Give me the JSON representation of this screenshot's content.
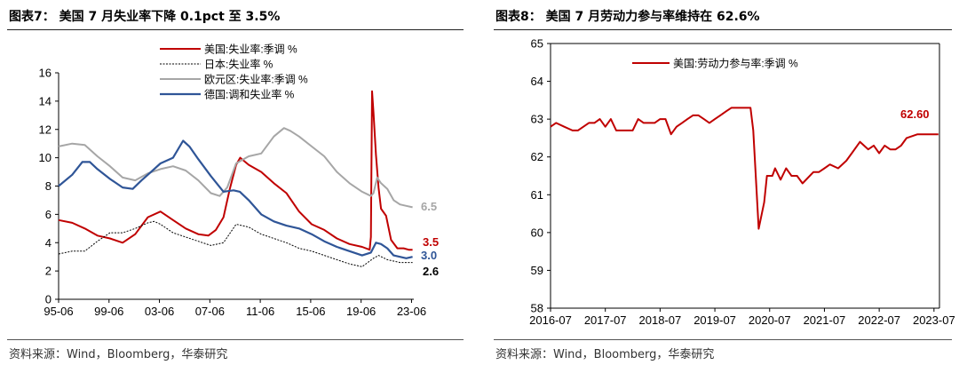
{
  "left": {
    "title": "图表7：   美国 7 月失业率下降 0.1pct 至 3.5%",
    "source": "资料来源：Wind，Bloomberg，华泰研究",
    "chart_data": {
      "type": "line",
      "title": "美国 7 月失业率下降 0.1pct 至 3.5%",
      "ylim": [
        0,
        16
      ],
      "yticks": [
        "0",
        "2",
        "4",
        "6",
        "8",
        "10",
        "12",
        "14",
        "16"
      ],
      "xlim": [
        1995.42,
        2023.6
      ],
      "xticks": [
        {
          "x": 1995.42,
          "label": "95-06"
        },
        {
          "x": 1999.42,
          "label": "99-06"
        },
        {
          "x": 2003.42,
          "label": "03-06"
        },
        {
          "x": 2007.42,
          "label": "07-06"
        },
        {
          "x": 2011.42,
          "label": "11-06"
        },
        {
          "x": 2015.42,
          "label": "15-06"
        },
        {
          "x": 2019.42,
          "label": "19-06"
        },
        {
          "x": 2023.42,
          "label": "23-06"
        }
      ],
      "series": [
        {
          "name": "美国:失业率:季调  %",
          "color": "#c00000",
          "style": "solid",
          "width": 2,
          "end_label": "3.5",
          "points": [
            [
              1995.42,
              5.6
            ],
            [
              1996.5,
              5.4
            ],
            [
              1997.5,
              5.0
            ],
            [
              1998.5,
              4.5
            ],
            [
              1999.5,
              4.3
            ],
            [
              2000.5,
              4.0
            ],
            [
              2001.5,
              4.6
            ],
            [
              2002.5,
              5.8
            ],
            [
              2003.5,
              6.2
            ],
            [
              2004.5,
              5.6
            ],
            [
              2005.5,
              5.0
            ],
            [
              2006.5,
              4.6
            ],
            [
              2007.3,
              4.5
            ],
            [
              2007.9,
              4.9
            ],
            [
              2008.5,
              5.8
            ],
            [
              2009.0,
              7.8
            ],
            [
              2009.5,
              9.5
            ],
            [
              2009.83,
              10.0
            ],
            [
              2010.5,
              9.5
            ],
            [
              2011.5,
              9.0
            ],
            [
              2012.5,
              8.2
            ],
            [
              2013.5,
              7.5
            ],
            [
              2014.5,
              6.2
            ],
            [
              2015.5,
              5.3
            ],
            [
              2016.5,
              4.9
            ],
            [
              2017.5,
              4.3
            ],
            [
              2018.5,
              3.9
            ],
            [
              2019.5,
              3.7
            ],
            [
              2020.1,
              3.5
            ],
            [
              2020.2,
              4.4
            ],
            [
              2020.29,
              14.7
            ],
            [
              2020.4,
              13.2
            ],
            [
              2020.6,
              10.2
            ],
            [
              2020.8,
              7.9
            ],
            [
              2021.0,
              6.4
            ],
            [
              2021.4,
              5.9
            ],
            [
              2021.8,
              4.2
            ],
            [
              2022.3,
              3.6
            ],
            [
              2022.8,
              3.6
            ],
            [
              2023.2,
              3.5
            ],
            [
              2023.5,
              3.5
            ]
          ]
        },
        {
          "name": "日本:失业率  %",
          "color": "#000000",
          "style": "dotted",
          "width": 1,
          "end_label": "2.6",
          "points": [
            [
              1995.42,
              3.2
            ],
            [
              1996.5,
              3.4
            ],
            [
              1997.5,
              3.4
            ],
            [
              1998.5,
              4.1
            ],
            [
              1999.5,
              4.7
            ],
            [
              2000.5,
              4.7
            ],
            [
              2001.5,
              5.0
            ],
            [
              2002.5,
              5.4
            ],
            [
              2003.0,
              5.5
            ],
            [
              2003.5,
              5.3
            ],
            [
              2004.5,
              4.7
            ],
            [
              2005.5,
              4.4
            ],
            [
              2006.5,
              4.1
            ],
            [
              2007.5,
              3.8
            ],
            [
              2008.5,
              4.0
            ],
            [
              2009.5,
              5.3
            ],
            [
              2010.5,
              5.1
            ],
            [
              2011.5,
              4.6
            ],
            [
              2012.5,
              4.3
            ],
            [
              2013.5,
              4.0
            ],
            [
              2014.5,
              3.6
            ],
            [
              2015.5,
              3.4
            ],
            [
              2016.5,
              3.1
            ],
            [
              2017.5,
              2.8
            ],
            [
              2018.5,
              2.5
            ],
            [
              2019.5,
              2.3
            ],
            [
              2020.4,
              2.9
            ],
            [
              2020.8,
              3.1
            ],
            [
              2021.5,
              2.8
            ],
            [
              2022.5,
              2.6
            ],
            [
              2023.5,
              2.6
            ]
          ]
        },
        {
          "name": "欧元区:失业率:季调  %",
          "color": "#a6a6a6",
          "style": "solid",
          "width": 2,
          "end_label": "6.5",
          "points": [
            [
              1995.42,
              10.8
            ],
            [
              1996.5,
              11.0
            ],
            [
              1997.5,
              10.9
            ],
            [
              1998.5,
              10.1
            ],
            [
              1999.5,
              9.4
            ],
            [
              2000.5,
              8.6
            ],
            [
              2001.5,
              8.4
            ],
            [
              2002.5,
              8.9
            ],
            [
              2003.5,
              9.2
            ],
            [
              2004.5,
              9.4
            ],
            [
              2005.5,
              9.1
            ],
            [
              2006.5,
              8.4
            ],
            [
              2007.5,
              7.5
            ],
            [
              2008.2,
              7.3
            ],
            [
              2008.8,
              7.9
            ],
            [
              2009.5,
              9.6
            ],
            [
              2010.5,
              10.1
            ],
            [
              2011.5,
              10.3
            ],
            [
              2012.5,
              11.5
            ],
            [
              2013.3,
              12.1
            ],
            [
              2013.8,
              11.9
            ],
            [
              2014.5,
              11.5
            ],
            [
              2015.5,
              10.8
            ],
            [
              2016.5,
              10.1
            ],
            [
              2017.5,
              9.0
            ],
            [
              2018.5,
              8.2
            ],
            [
              2019.5,
              7.6
            ],
            [
              2020.2,
              7.3
            ],
            [
              2020.4,
              7.5
            ],
            [
              2020.7,
              8.6
            ],
            [
              2021.0,
              8.2
            ],
            [
              2021.5,
              7.8
            ],
            [
              2022.0,
              7.0
            ],
            [
              2022.5,
              6.7
            ],
            [
              2023.0,
              6.6
            ],
            [
              2023.5,
              6.5
            ]
          ]
        },
        {
          "name": "德国:调和失业率  %",
          "color": "#2f5597",
          "style": "solid",
          "width": 2.2,
          "end_label": "3.0",
          "points": [
            [
              1995.42,
              8.0
            ],
            [
              1996.5,
              8.8
            ],
            [
              1997.3,
              9.7
            ],
            [
              1997.9,
              9.7
            ],
            [
              1998.5,
              9.2
            ],
            [
              1999.5,
              8.5
            ],
            [
              2000.5,
              7.9
            ],
            [
              2001.3,
              7.8
            ],
            [
              2002.0,
              8.4
            ],
            [
              2002.5,
              8.8
            ],
            [
              2003.5,
              9.6
            ],
            [
              2004.5,
              10.0
            ],
            [
              2005.3,
              11.2
            ],
            [
              2005.8,
              10.8
            ],
            [
              2006.5,
              9.9
            ],
            [
              2007.5,
              8.7
            ],
            [
              2008.5,
              7.6
            ],
            [
              2009.3,
              7.7
            ],
            [
              2009.8,
              7.6
            ],
            [
              2010.5,
              7.0
            ],
            [
              2011.5,
              6.0
            ],
            [
              2012.5,
              5.5
            ],
            [
              2013.5,
              5.2
            ],
            [
              2014.5,
              5.0
            ],
            [
              2015.5,
              4.6
            ],
            [
              2016.5,
              4.1
            ],
            [
              2017.5,
              3.7
            ],
            [
              2018.5,
              3.4
            ],
            [
              2019.5,
              3.1
            ],
            [
              2020.2,
              3.3
            ],
            [
              2020.6,
              4.0
            ],
            [
              2021.0,
              3.9
            ],
            [
              2021.5,
              3.6
            ],
            [
              2022.0,
              3.1
            ],
            [
              2022.5,
              3.0
            ],
            [
              2023.0,
              2.9
            ],
            [
              2023.5,
              3.0
            ]
          ]
        }
      ]
    }
  },
  "right": {
    "title": "图表8：   美国 7 月劳动力参与率维持在 62.6%",
    "source": "资料来源：Wind，Bloomberg，华泰研究",
    "chart_data": {
      "type": "line",
      "title": "美国 7 月劳动力参与率维持在 62.6%",
      "ylim": [
        58,
        65
      ],
      "yticks": [
        "58",
        "59",
        "60",
        "61",
        "62",
        "63",
        "64",
        "65"
      ],
      "xlim": [
        2016.5,
        2023.6
      ],
      "xticks": [
        {
          "x": 2016.5,
          "label": "2016-07"
        },
        {
          "x": 2017.5,
          "label": "2017-07"
        },
        {
          "x": 2018.5,
          "label": "2018-07"
        },
        {
          "x": 2019.5,
          "label": "2019-07"
        },
        {
          "x": 2020.5,
          "label": "2020-07"
        },
        {
          "x": 2021.5,
          "label": "2021-07"
        },
        {
          "x": 2022.5,
          "label": "2022-07"
        },
        {
          "x": 2023.5,
          "label": "2023-07"
        }
      ],
      "series": [
        {
          "name": "美国:劳动力参与率:季调  %",
          "color": "#c00000",
          "style": "solid",
          "width": 2,
          "end_label": "62.60",
          "points": [
            [
              2016.5,
              62.8
            ],
            [
              2016.6,
              62.9
            ],
            [
              2016.75,
              62.8
            ],
            [
              2016.9,
              62.7
            ],
            [
              2017.0,
              62.7
            ],
            [
              2017.1,
              62.8
            ],
            [
              2017.2,
              62.9
            ],
            [
              2017.3,
              62.9
            ],
            [
              2017.4,
              63.0
            ],
            [
              2017.5,
              62.8
            ],
            [
              2017.6,
              63.0
            ],
            [
              2017.7,
              62.7
            ],
            [
              2017.8,
              62.7
            ],
            [
              2017.9,
              62.7
            ],
            [
              2018.0,
              62.7
            ],
            [
              2018.1,
              63.0
            ],
            [
              2018.2,
              62.9
            ],
            [
              2018.4,
              62.9
            ],
            [
              2018.5,
              63.0
            ],
            [
              2018.6,
              63.0
            ],
            [
              2018.7,
              62.6
            ],
            [
              2018.8,
              62.8
            ],
            [
              2018.9,
              62.9
            ],
            [
              2019.0,
              63.0
            ],
            [
              2019.1,
              63.1
            ],
            [
              2019.2,
              63.1
            ],
            [
              2019.3,
              63.0
            ],
            [
              2019.4,
              62.9
            ],
            [
              2019.5,
              63.0
            ],
            [
              2019.6,
              63.1
            ],
            [
              2019.7,
              63.2
            ],
            [
              2019.8,
              63.3
            ],
            [
              2020.0,
              63.3
            ],
            [
              2020.15,
              63.3
            ],
            [
              2020.2,
              62.7
            ],
            [
              2020.3,
              60.1
            ],
            [
              2020.4,
              60.8
            ],
            [
              2020.45,
              61.5
            ],
            [
              2020.55,
              61.5
            ],
            [
              2020.6,
              61.7
            ],
            [
              2020.7,
              61.4
            ],
            [
              2020.8,
              61.7
            ],
            [
              2020.9,
              61.5
            ],
            [
              2021.0,
              61.5
            ],
            [
              2021.1,
              61.3
            ],
            [
              2021.3,
              61.6
            ],
            [
              2021.4,
              61.6
            ],
            [
              2021.5,
              61.7
            ],
            [
              2021.6,
              61.8
            ],
            [
              2021.75,
              61.7
            ],
            [
              2021.9,
              61.9
            ],
            [
              2022.0,
              62.1
            ],
            [
              2022.15,
              62.4
            ],
            [
              2022.3,
              62.2
            ],
            [
              2022.4,
              62.3
            ],
            [
              2022.5,
              62.1
            ],
            [
              2022.6,
              62.3
            ],
            [
              2022.7,
              62.2
            ],
            [
              2022.8,
              62.2
            ],
            [
              2022.9,
              62.3
            ],
            [
              2023.0,
              62.5
            ],
            [
              2023.2,
              62.6
            ],
            [
              2023.4,
              62.6
            ],
            [
              2023.5,
              62.6
            ],
            [
              2023.58,
              62.6
            ]
          ]
        }
      ]
    }
  }
}
